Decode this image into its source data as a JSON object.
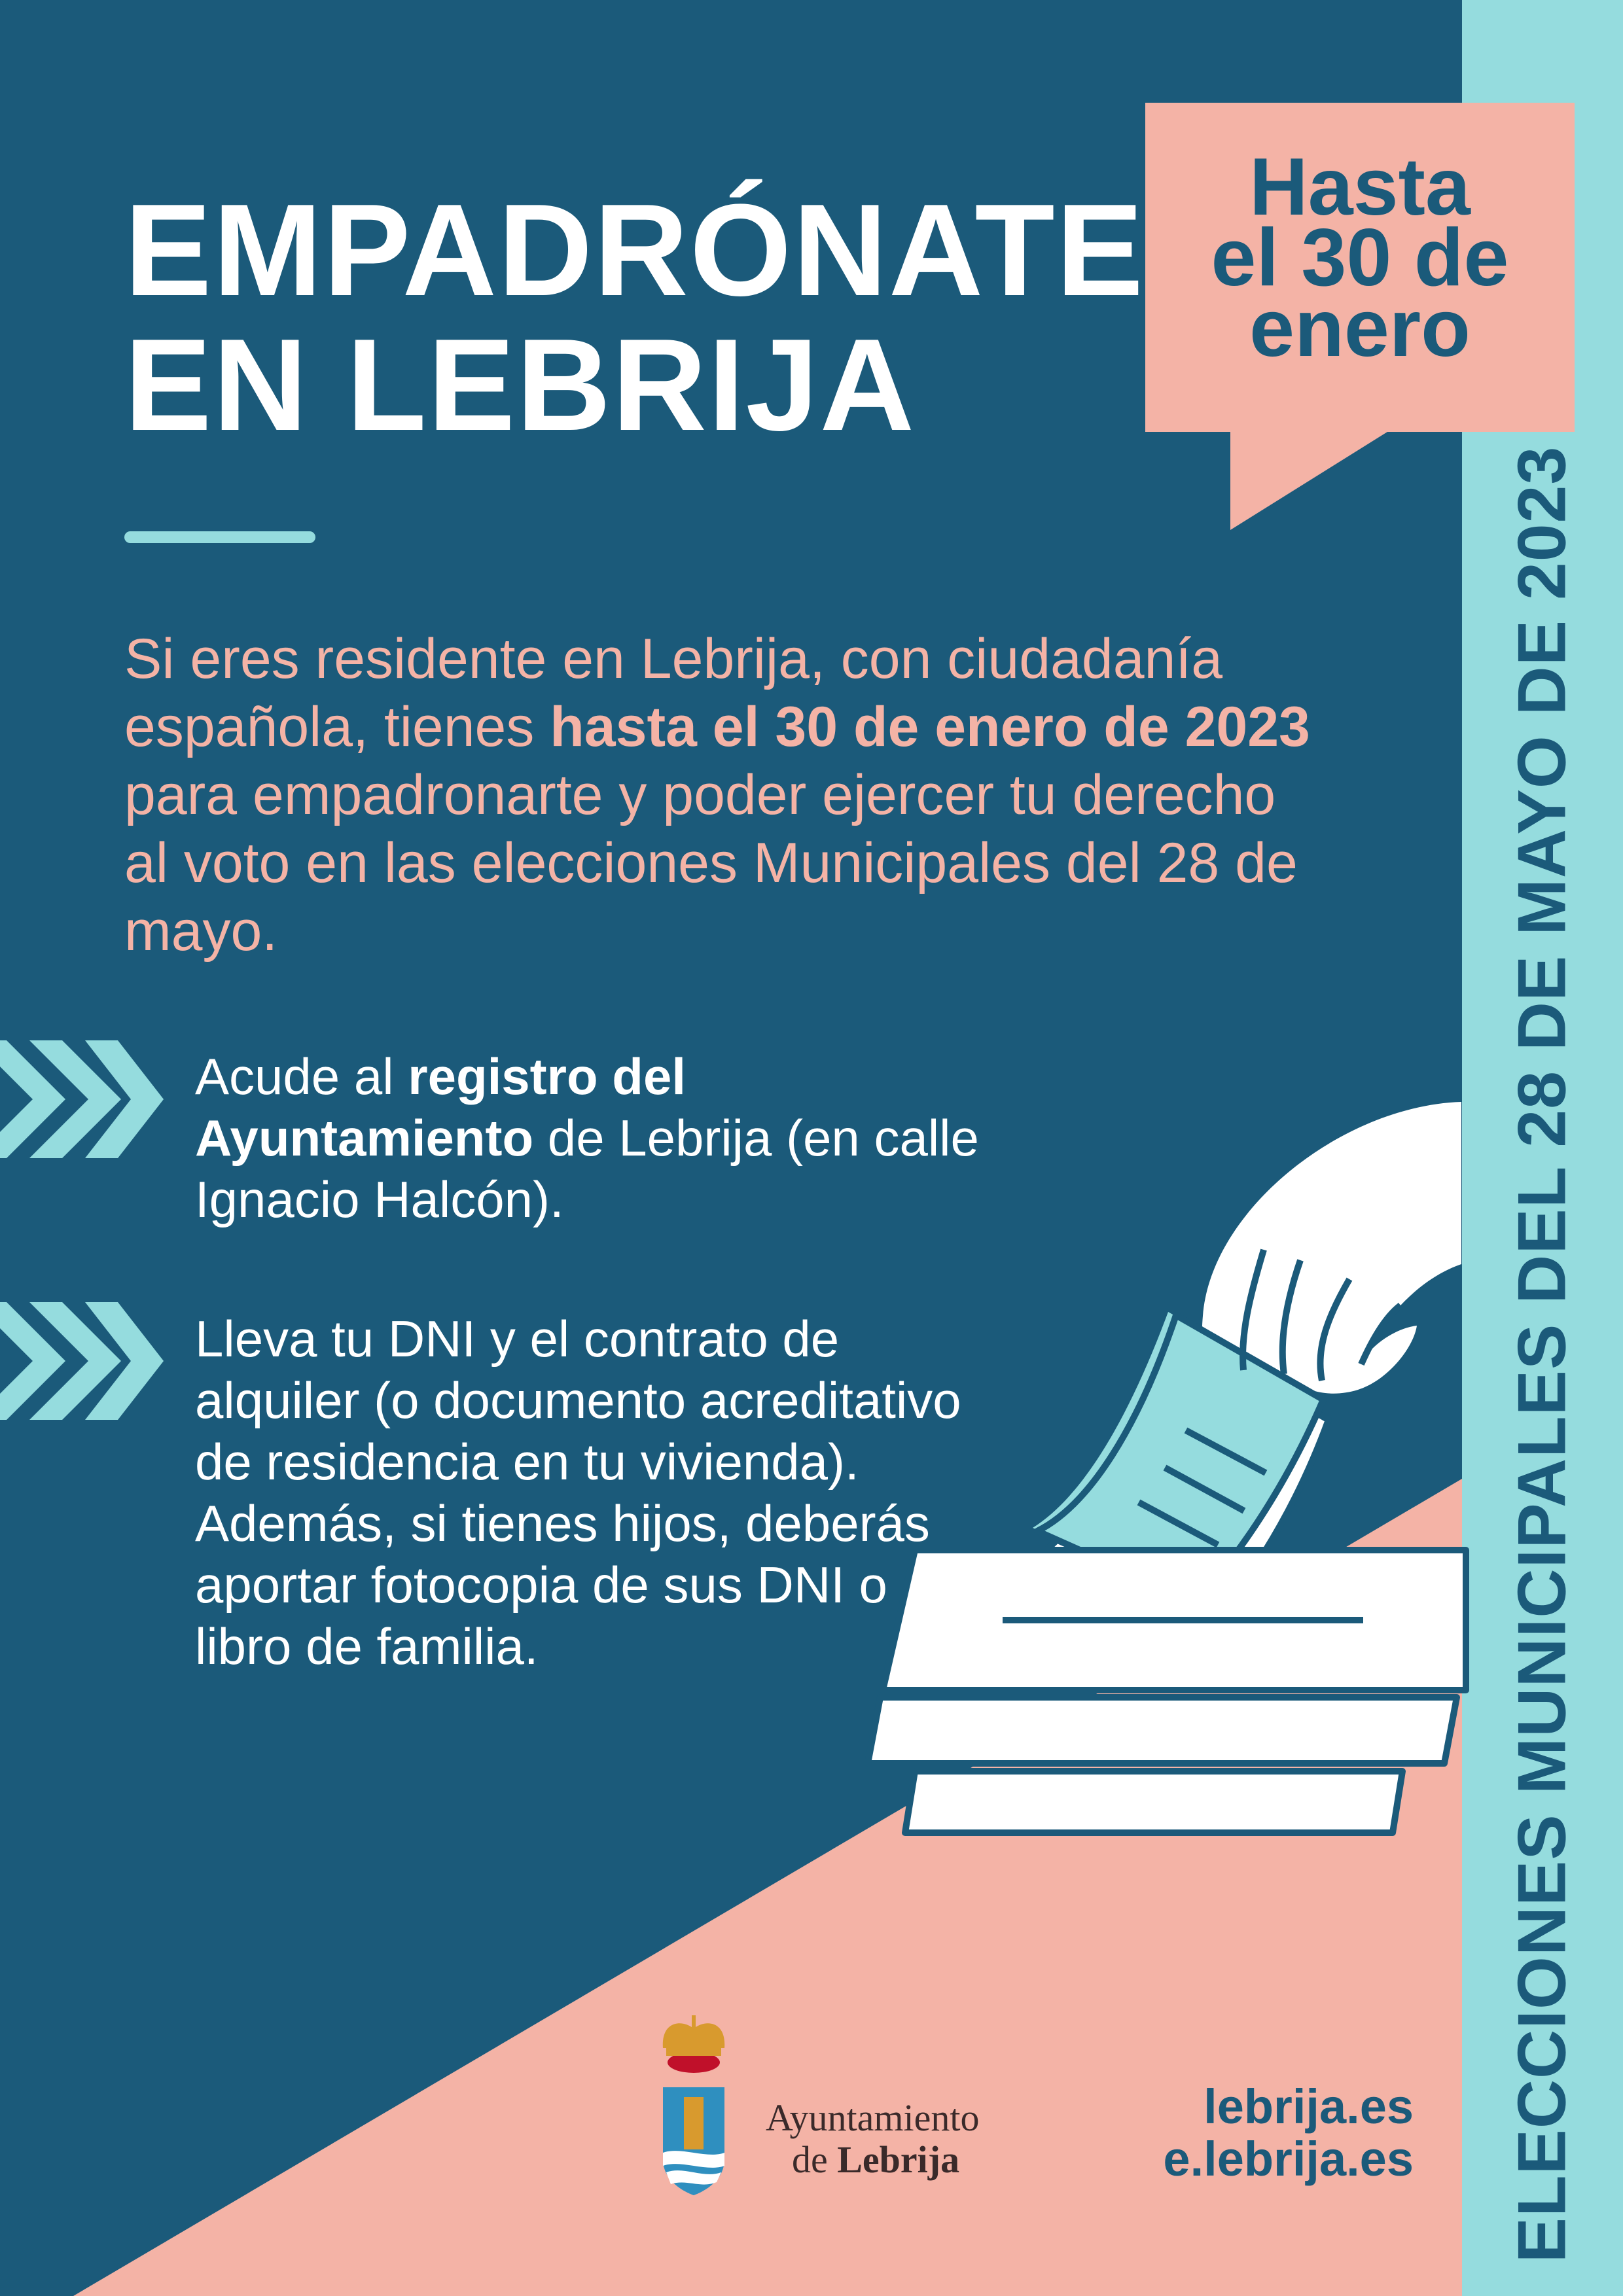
{
  "colors": {
    "dark_blue": "#1b5a7a",
    "pink": "#f4b3a6",
    "cyan": "#95dcde",
    "white": "#ffffff"
  },
  "title": {
    "line1": "EMPADRÓNATE",
    "line2": "EN LEBRIJA"
  },
  "callout": {
    "line1": "Hasta",
    "line2": "el 30 de",
    "line3": "enero"
  },
  "intro": {
    "part1": "Si eres residente en Lebrija, con ciudadanía española, tienes ",
    "bold": "hasta el 30 de enero de 2023",
    "part2": " para empadronarte y poder ejercer tu derecho al voto en las elecciones Municipales del 28 de mayo."
  },
  "bullets": [
    {
      "icon": "triple-chevron-right-icon",
      "pre": "Acude al ",
      "bold": "registro del Ayuntamiento",
      "post": " de Lebrija (en calle Ignacio Halcón)."
    },
    {
      "icon": "triple-chevron-right-icon",
      "text": "Lleva tu DNI y el contrato de alquiler (o documento acreditativo de residencia en tu vivienda). Además, si tienes hijos, deberás aportar fotocopia de sus DNI o libro de familia."
    }
  ],
  "side_banner": "ELECCIONES MUNICIPALES DEL 28 DE MAYO DE 2023",
  "logo": {
    "line1": "Ayuntamiento",
    "line2_pre": "de ",
    "line2_bold": "Lebrija"
  },
  "links": [
    "lebrija.es",
    "e.lebrija.es"
  ]
}
